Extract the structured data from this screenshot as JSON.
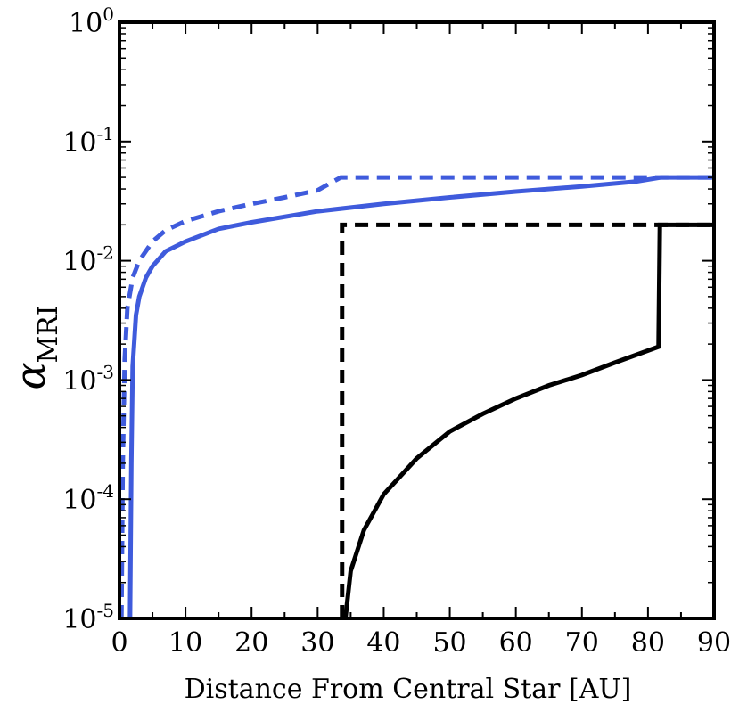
{
  "chart_data": {
    "type": "line",
    "title": "",
    "xlabel": "Distance From Central Star [AU]",
    "ylabel": {
      "symbol": "α",
      "subscript": "MRI"
    },
    "xlim": [
      0,
      90
    ],
    "ylim": [
      1e-05,
      1
    ],
    "yscale": "log",
    "grid": false,
    "legend": "none",
    "x_ticks": [
      0,
      10,
      20,
      30,
      40,
      50,
      60,
      70,
      80,
      90
    ],
    "x_tick_labels": [
      "0",
      "10",
      "20",
      "30",
      "40",
      "50",
      "60",
      "70",
      "80",
      "90"
    ],
    "y_ticks": [
      {
        "value": 1,
        "base": "10",
        "exp": "0"
      },
      {
        "value": 0.1,
        "base": "10",
        "exp": "-1"
      },
      {
        "value": 0.01,
        "base": "10",
        "exp": "-2"
      },
      {
        "value": 0.001,
        "base": "10",
        "exp": "-3"
      },
      {
        "value": 0.0001,
        "base": "10",
        "exp": "-4"
      },
      {
        "value": 1e-05,
        "base": "10",
        "exp": "-5"
      }
    ],
    "series": [
      {
        "color": "#3f5bdc",
        "style": "dashed",
        "points": [
          [
            0.3,
            1e-05
          ],
          [
            0.5,
            0.0002
          ],
          [
            0.8,
            0.0015
          ],
          [
            1.2,
            0.004
          ],
          [
            2,
            0.0072
          ],
          [
            3,
            0.01
          ],
          [
            5,
            0.0145
          ],
          [
            7,
            0.018
          ],
          [
            10,
            0.0215
          ],
          [
            15,
            0.026
          ],
          [
            20,
            0.03
          ],
          [
            25,
            0.034
          ],
          [
            30,
            0.039
          ],
          [
            33.5,
            0.05
          ],
          [
            90,
            0.05
          ]
        ]
      },
      {
        "color": "#3f5bdc",
        "style": "solid",
        "points": [
          [
            1.6,
            1e-05
          ],
          [
            1.8,
            0.0002
          ],
          [
            2,
            0.0013
          ],
          [
            2.5,
            0.0035
          ],
          [
            3,
            0.005
          ],
          [
            4,
            0.0072
          ],
          [
            5,
            0.009
          ],
          [
            7,
            0.012
          ],
          [
            10,
            0.0145
          ],
          [
            15,
            0.0185
          ],
          [
            20,
            0.021
          ],
          [
            30,
            0.026
          ],
          [
            40,
            0.03
          ],
          [
            50,
            0.034
          ],
          [
            60,
            0.038
          ],
          [
            70,
            0.042
          ],
          [
            78,
            0.046
          ],
          [
            82,
            0.05
          ],
          [
            90,
            0.05
          ]
        ]
      },
      {
        "color": "#000000",
        "style": "dashed",
        "points": [
          [
            33.7,
            1e-05
          ],
          [
            33.7,
            0.02
          ],
          [
            90,
            0.02
          ]
        ]
      },
      {
        "color": "#000000",
        "style": "solid",
        "points": [
          [
            34.2,
            1e-05
          ],
          [
            35,
            2.5e-05
          ],
          [
            37,
            5.5e-05
          ],
          [
            40,
            0.00011
          ],
          [
            45,
            0.00022
          ],
          [
            50,
            0.00037
          ],
          [
            55,
            0.00052
          ],
          [
            60,
            0.0007
          ],
          [
            65,
            0.0009
          ],
          [
            70,
            0.0011
          ],
          [
            75,
            0.0014
          ],
          [
            81.6,
            0.0019
          ],
          [
            81.8,
            0.02
          ],
          [
            90,
            0.02
          ]
        ]
      }
    ]
  }
}
